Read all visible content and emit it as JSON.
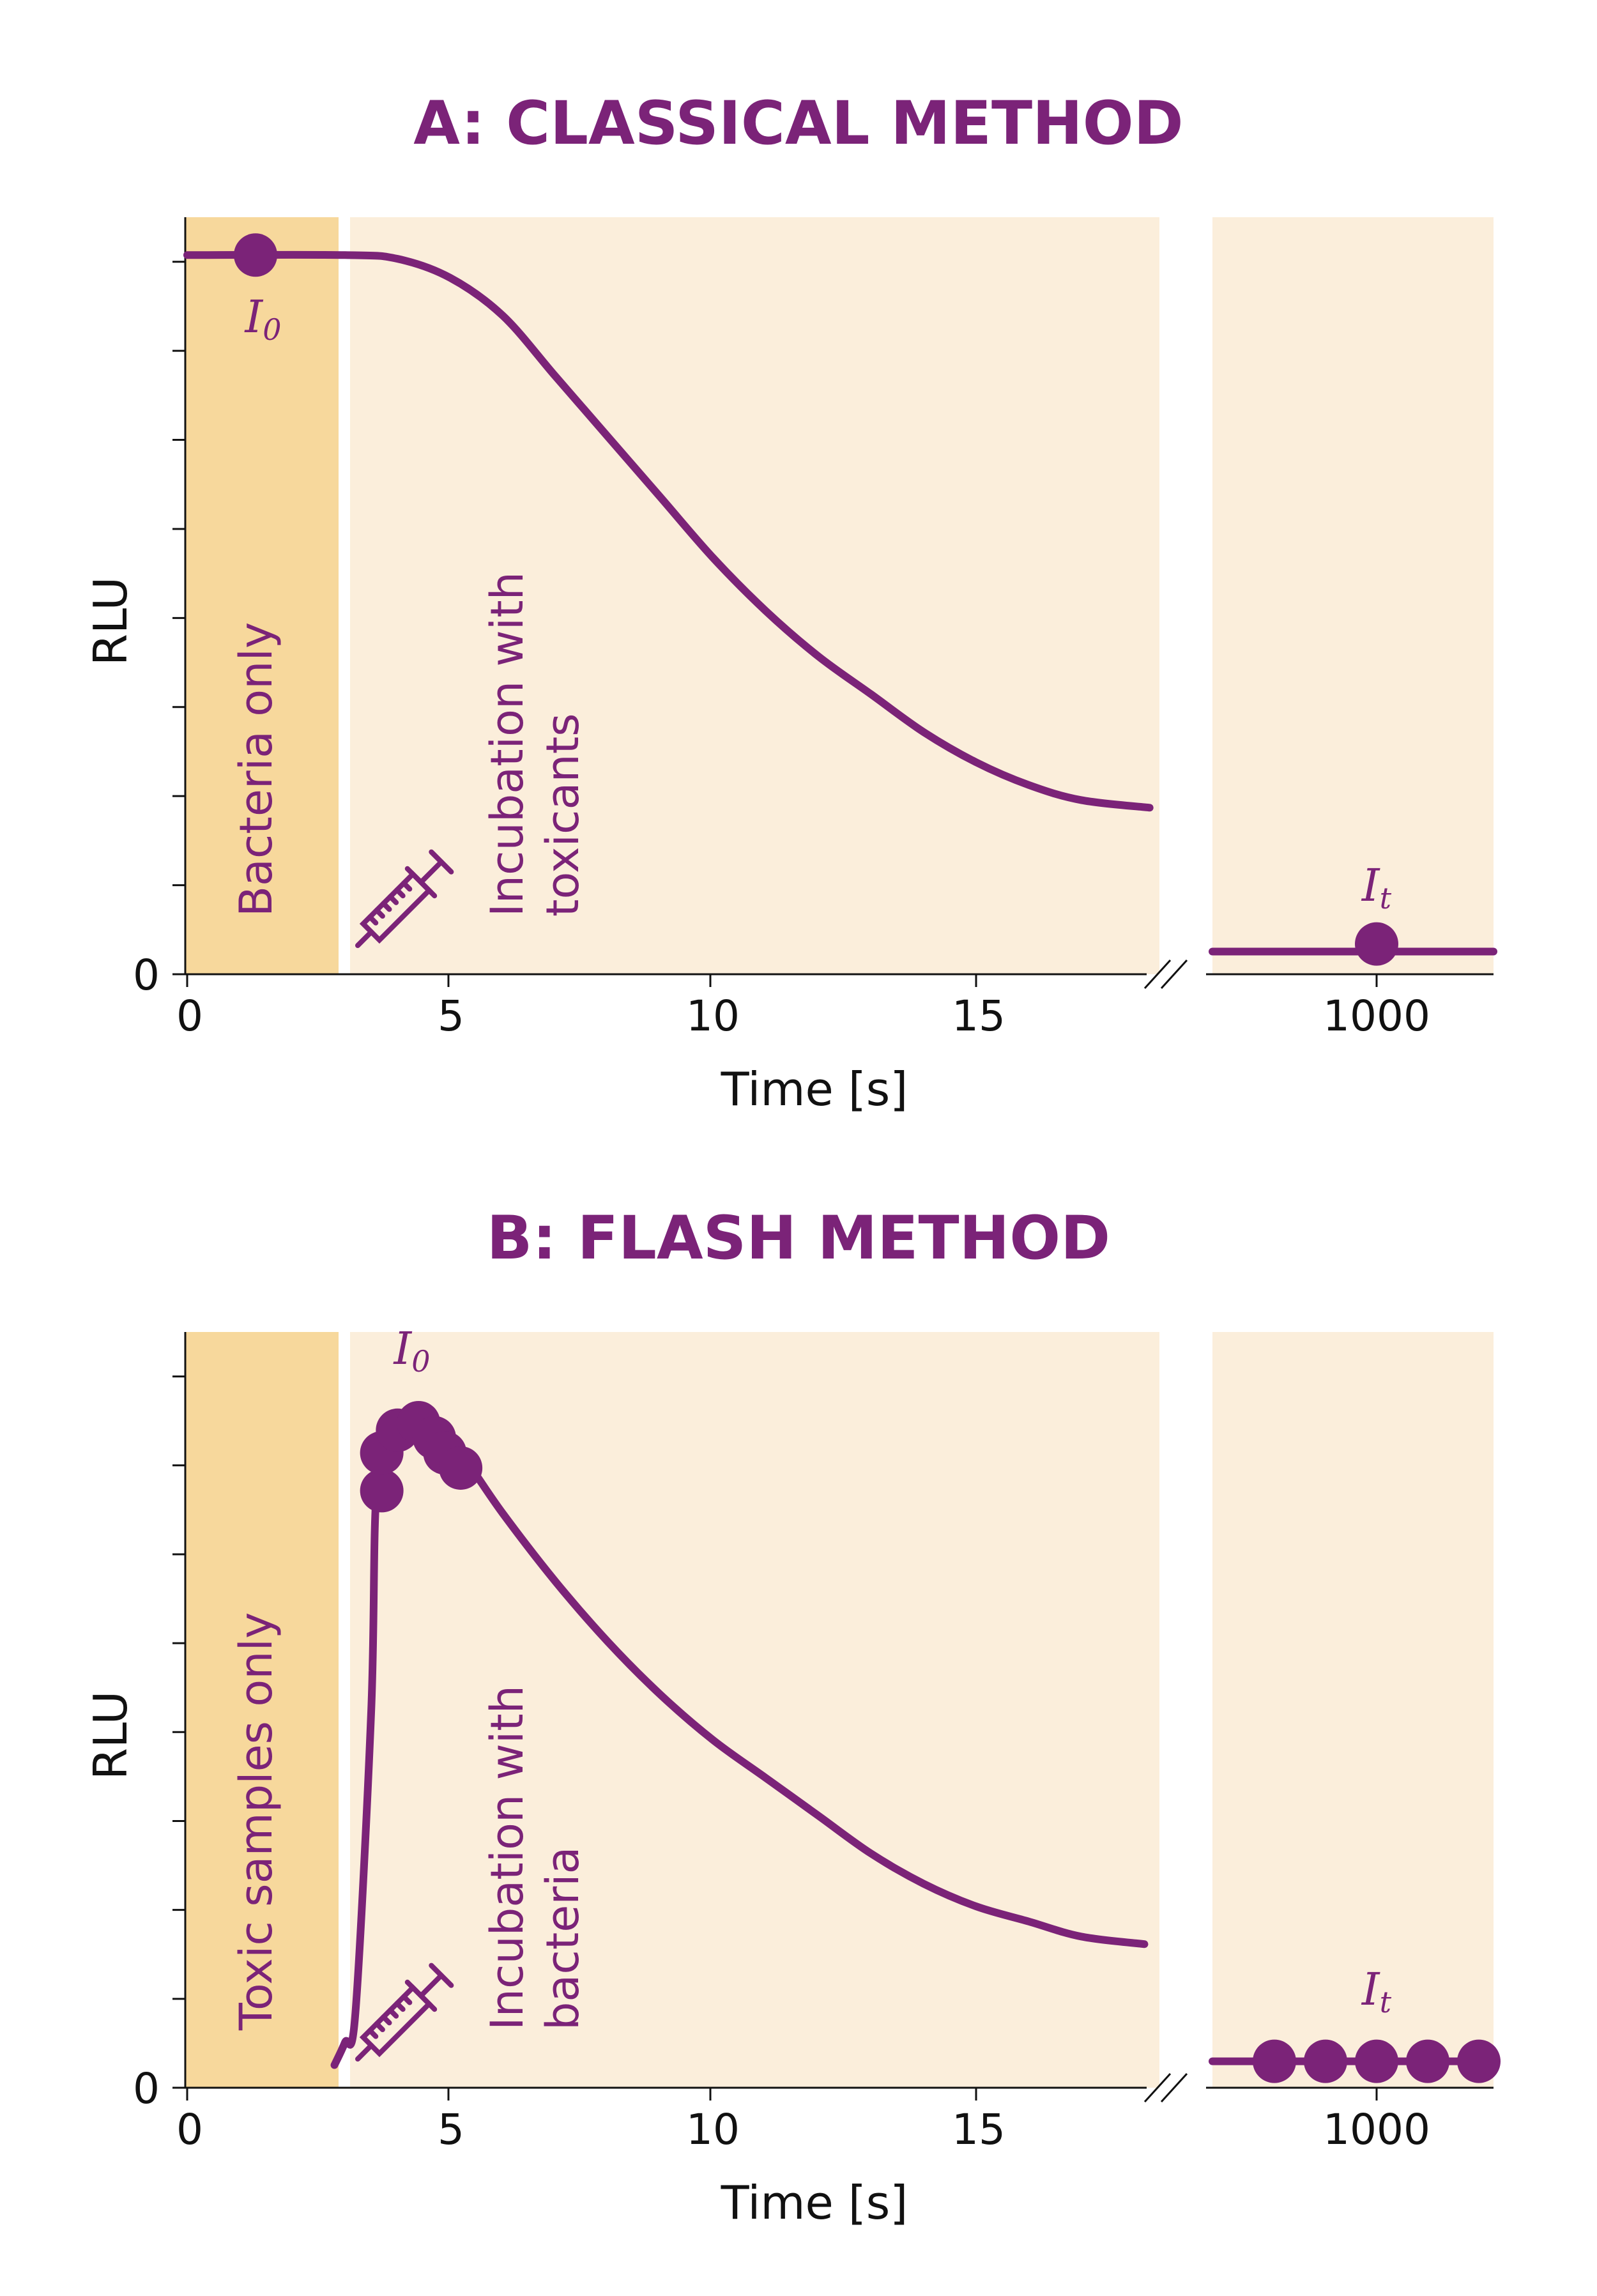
{
  "colors": {
    "accent": "#7b2378",
    "pre_region": "#f7d89c",
    "post_region": "#fbeedb"
  },
  "chart_data": [
    {
      "type": "line",
      "title": "A: CLASSICAL METHOD",
      "xlabel": "Time [s]",
      "ylabel": "RLU",
      "xticks": [
        "0",
        "5",
        "10",
        "15",
        "1000"
      ],
      "yticks": [
        "0"
      ],
      "x_break": true,
      "pre_region_label": "Bacteria only",
      "post_region_label_line1": "Incubation with",
      "post_region_label_line2": "toxicants",
      "annotation_start": {
        "letter": "I",
        "subscript": "0"
      },
      "annotation_end": {
        "letter": "I",
        "subscript": "t"
      },
      "icon": "syringe-icon",
      "series": [
        {
          "x": [
            0,
            3,
            4,
            5,
            6,
            7,
            8,
            9,
            10,
            11,
            12,
            13,
            14,
            15,
            16,
            17,
            18.3
          ],
          "y": [
            0.95,
            0.95,
            0.945,
            0.92,
            0.87,
            0.79,
            0.71,
            0.63,
            0.55,
            0.48,
            0.42,
            0.37,
            0.32,
            0.28,
            0.25,
            0.23,
            0.22
          ]
        },
        {
          "x": [
            1000
          ],
          "y": [
            0.03
          ]
        }
      ],
      "markers": [
        {
          "x": 1.3,
          "y": 0.95
        },
        {
          "x": 1000,
          "y": 0.04
        }
      ]
    },
    {
      "type": "line",
      "title": "B: FLASH METHOD",
      "xlabel": "Time [s]",
      "ylabel": "RLU",
      "xticks": [
        "0",
        "5",
        "10",
        "15",
        "1000"
      ],
      "yticks": [
        "0"
      ],
      "x_break": true,
      "pre_region_label": "Toxic samples only",
      "post_region_label_line1": "Incubation with",
      "post_region_label_line2": "bacteria",
      "annotation_start": {
        "letter": "I",
        "subscript": "0"
      },
      "annotation_end": {
        "letter": "I",
        "subscript": "t"
      },
      "icon": "syringe-icon",
      "series": [
        {
          "x": [
            2.8,
            3.0,
            3.2,
            3.5,
            3.6,
            3.9,
            4.3,
            4.8,
            5.3,
            6,
            7,
            8,
            9,
            10,
            11,
            12,
            13,
            14,
            15,
            16,
            17,
            18.2
          ],
          "y": [
            0.03,
            0.06,
            0.1,
            0.5,
            0.79,
            0.87,
            0.89,
            0.87,
            0.83,
            0.76,
            0.67,
            0.59,
            0.52,
            0.46,
            0.41,
            0.36,
            0.31,
            0.27,
            0.24,
            0.22,
            0.2,
            0.19
          ]
        },
        {
          "x": [
            1000
          ],
          "y": [
            0.035
          ]
        }
      ],
      "markers": [
        {
          "x": 3.7,
          "y": 0.79
        },
        {
          "x": 3.7,
          "y": 0.84
        },
        {
          "x": 4.0,
          "y": 0.87
        },
        {
          "x": 4.4,
          "y": 0.88
        },
        {
          "x": 4.7,
          "y": 0.86
        },
        {
          "x": 4.9,
          "y": 0.84
        },
        {
          "x": 5.2,
          "y": 0.82
        },
        {
          "x": 980,
          "y": 0.035
        },
        {
          "x": 990,
          "y": 0.035
        },
        {
          "x": 1000,
          "y": 0.035
        },
        {
          "x": 1010,
          "y": 0.035
        },
        {
          "x": 1020,
          "y": 0.035
        }
      ]
    }
  ]
}
